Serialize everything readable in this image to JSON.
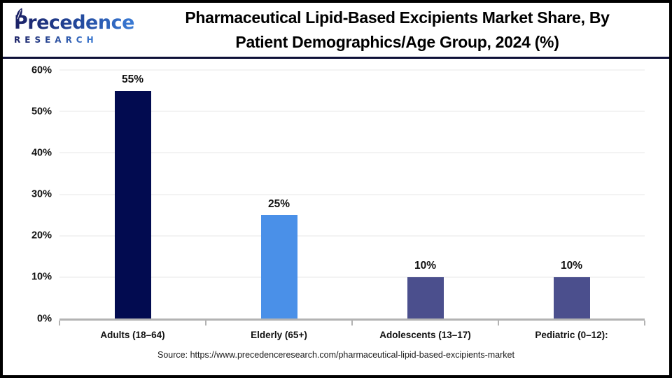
{
  "header": {
    "logo": {
      "line1": "Precedence",
      "line2": "RESEARCH"
    },
    "title_line1": "Pharmaceutical Lipid-Based Excipients Market Share, By",
    "title_line2": "Patient Demographics/Age Group, 2024 (%)"
  },
  "chart_data": {
    "type": "bar",
    "title": "Pharmaceutical Lipid-Based Excipients Market Share, By Patient Demographics/Age Group, 2024 (%)",
    "categories": [
      "Adults (18–64)",
      "Elderly (65+)",
      "Adolescents (13–17)",
      "Pediatric (0–12):"
    ],
    "values": [
      55,
      25,
      10,
      10
    ],
    "value_suffix": "%",
    "bar_colors": [
      "#020b50",
      "#4a90e8",
      "#4b4f8d",
      "#4b4f8d"
    ],
    "xlabel": "",
    "ylabel": "",
    "ylim": [
      0,
      60
    ],
    "yticks": [
      "0%",
      "10%",
      "20%",
      "30%",
      "40%",
      "50%",
      "60%"
    ],
    "grid": true,
    "legend": false
  },
  "source": "Source: https://www.precedenceresearch.com/pharmaceutical-lipid-based-excipients-market",
  "colors": {
    "frame_border": "#000000",
    "header_rule": "#0e1038",
    "grid": "#e7e7e7",
    "axis": "#b3b3b3",
    "title_text": "#000000",
    "logo_navy": "#1b2166",
    "logo_blue": "#3a7bd5"
  }
}
